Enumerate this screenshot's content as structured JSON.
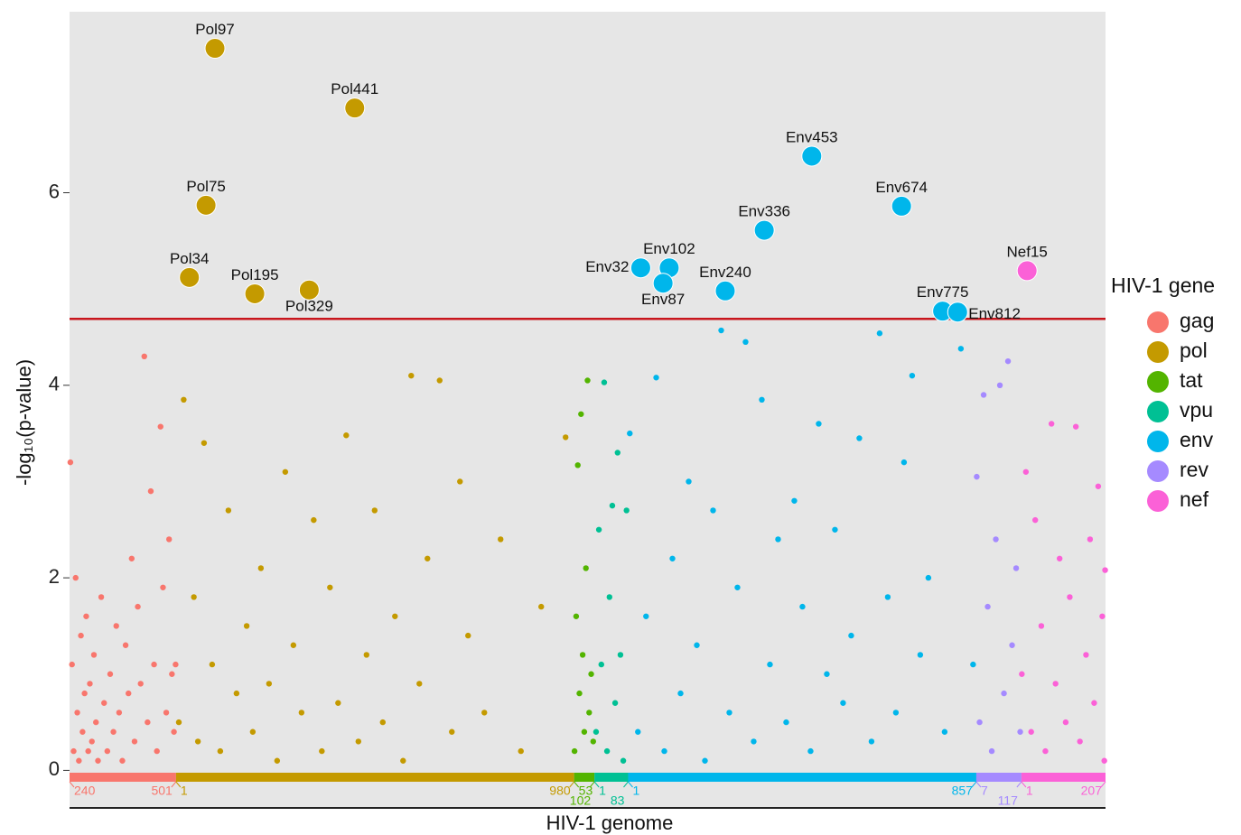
{
  "chart_data": {
    "type": "manhattan",
    "x_label": "HIV-1 genome",
    "y_label": "-log₁₀(p-value)",
    "legend_title": "HIV-1 gene",
    "legend": "right",
    "ylim": [
      -0.39,
      7.88
    ],
    "yticks": [
      0,
      2,
      4,
      6
    ],
    "xlim": [
      0,
      2550
    ],
    "threshold": 4.69,
    "threshold_color": "#c8161d",
    "series": [
      {
        "name": "gag",
        "color": "#F8766D",
        "from": 240,
        "to": 501,
        "x": [
          242,
          246,
          250,
          255,
          259,
          263,
          268,
          272,
          277,
          281,
          286,
          290,
          295,
          300,
          305,
          310,
          318,
          325,
          333,
          340,
          348,
          355,
          362,
          370,
          378,
          385,
          393,
          400,
          408,
          415,
          424,
          432,
          440,
          448,
          455,
          464,
          470,
          478,
          485,
          492,
          497,
          501
        ],
        "values": [
          3.2,
          1.1,
          0.2,
          2.0,
          0.6,
          0.1,
          1.4,
          0.4,
          0.8,
          1.6,
          0.2,
          0.9,
          0.3,
          1.2,
          0.5,
          0.1,
          1.8,
          0.7,
          0.2,
          1.0,
          0.4,
          1.5,
          0.6,
          0.1,
          1.3,
          0.8,
          2.2,
          0.3,
          1.7,
          0.9,
          4.3,
          0.5,
          2.9,
          1.1,
          0.2,
          3.57,
          1.9,
          0.6,
          2.4,
          1.0,
          0.4,
          1.1
        ]
      },
      {
        "name": "pol",
        "color": "#C49A00",
        "from": 1,
        "to": 980,
        "x": [
          8,
          20,
          45,
          55,
          70,
          90,
          110,
          130,
          150,
          175,
          190,
          210,
          230,
          250,
          270,
          290,
          310,
          340,
          360,
          380,
          400,
          420,
          450,
          470,
          490,
          510,
          540,
          560,
          580,
          600,
          620,
          650,
          680,
          700,
          720,
          760,
          800,
          850,
          900,
          960
        ],
        "values": [
          0.5,
          3.85,
          1.8,
          0.3,
          3.4,
          1.1,
          0.2,
          2.7,
          0.8,
          1.5,
          0.4,
          2.1,
          0.9,
          0.1,
          3.1,
          1.3,
          0.6,
          2.6,
          0.2,
          1.9,
          0.7,
          3.48,
          0.3,
          1.2,
          2.7,
          0.5,
          1.6,
          0.1,
          4.1,
          0.9,
          2.2,
          4.05,
          0.4,
          3.0,
          1.4,
          0.6,
          2.4,
          0.2,
          1.7,
          3.46
        ],
        "highlights": {
          "x": [
            97,
            441,
            75,
            34,
            195,
            329
          ],
          "values": [
            7.5,
            6.88,
            5.87,
            5.12,
            4.95,
            4.99
          ],
          "labels": [
            "Pol97",
            "Pol441",
            "Pol75",
            "Pol34",
            "Pol195",
            "Pol329"
          ]
        }
      },
      {
        "name": "tat",
        "color": "#53B400",
        "from": 53,
        "to": 102,
        "x": [
          54,
          58,
          62,
          66,
          70,
          74,
          78,
          82,
          86,
          90,
          95,
          100
        ],
        "values": [
          0.2,
          1.6,
          3.17,
          0.8,
          3.7,
          1.2,
          0.4,
          2.1,
          4.05,
          0.6,
          1.0,
          0.3
        ]
      },
      {
        "name": "vpu",
        "color": "#00C094",
        "from": 1,
        "to": 83,
        "x": [
          5,
          12,
          18,
          25,
          32,
          38,
          45,
          52,
          58,
          65,
          72,
          80
        ],
        "values": [
          0.4,
          2.5,
          1.1,
          4.03,
          0.2,
          1.8,
          2.75,
          0.7,
          3.3,
          1.2,
          0.1,
          2.7
        ]
      },
      {
        "name": "env",
        "color": "#00B6EB",
        "from": 1,
        "to": 857,
        "x": [
          5,
          25,
          45,
          70,
          90,
          110,
          130,
          150,
          170,
          190,
          210,
          230,
          250,
          270,
          290,
          310,
          330,
          350,
          370,
          390,
          410,
          430,
          450,
          470,
          490,
          510,
          530,
          550,
          570,
          600,
          620,
          640,
          660,
          680,
          700,
          720,
          740,
          780,
          820,
          850
        ],
        "values": [
          3.5,
          0.4,
          1.6,
          4.08,
          0.2,
          2.2,
          0.8,
          3.0,
          1.3,
          0.1,
          2.7,
          4.57,
          0.6,
          1.9,
          4.45,
          0.3,
          3.85,
          1.1,
          2.4,
          0.5,
          2.8,
          1.7,
          0.2,
          3.6,
          1.0,
          2.5,
          0.7,
          1.4,
          3.45,
          0.3,
          4.54,
          1.8,
          0.6,
          3.2,
          4.1,
          1.2,
          2.0,
          0.4,
          4.38,
          1.1
        ],
        "highlights": {
          "x": [
            453,
            674,
            336,
            32,
            102,
            87,
            240,
            775,
            812
          ],
          "values": [
            6.38,
            5.86,
            5.61,
            5.22,
            5.22,
            5.06,
            4.98,
            4.77,
            4.76
          ],
          "labels": [
            "Env453",
            "Env674",
            "Env336",
            "Env32",
            "Env102",
            "Env87",
            "Env240",
            "Env775",
            "Env812"
          ]
        }
      },
      {
        "name": "rev",
        "color": "#A58AFF",
        "from": 7,
        "to": 117,
        "x": [
          8,
          15,
          25,
          35,
          45,
          55,
          65,
          75,
          85,
          95,
          105,
          115
        ],
        "values": [
          3.05,
          0.5,
          3.9,
          1.7,
          0.2,
          2.4,
          4.0,
          0.8,
          4.25,
          1.3,
          2.1,
          0.4
        ]
      },
      {
        "name": "nef",
        "color": "#FB61D7",
        "from": 1,
        "to": 207,
        "x": [
          2,
          12,
          25,
          35,
          50,
          60,
          75,
          85,
          95,
          110,
          120,
          135,
          145,
          160,
          170,
          180,
          190,
          200,
          205,
          207
        ],
        "values": [
          1.0,
          3.1,
          0.4,
          2.6,
          1.5,
          0.2,
          3.6,
          0.9,
          2.2,
          0.5,
          1.8,
          3.57,
          0.3,
          1.2,
          2.4,
          0.7,
          2.95,
          1.6,
          0.1,
          2.08
        ],
        "highlights": {
          "x": [
            15
          ],
          "values": [
            5.19
          ],
          "labels": [
            "Nef15"
          ]
        }
      }
    ]
  }
}
